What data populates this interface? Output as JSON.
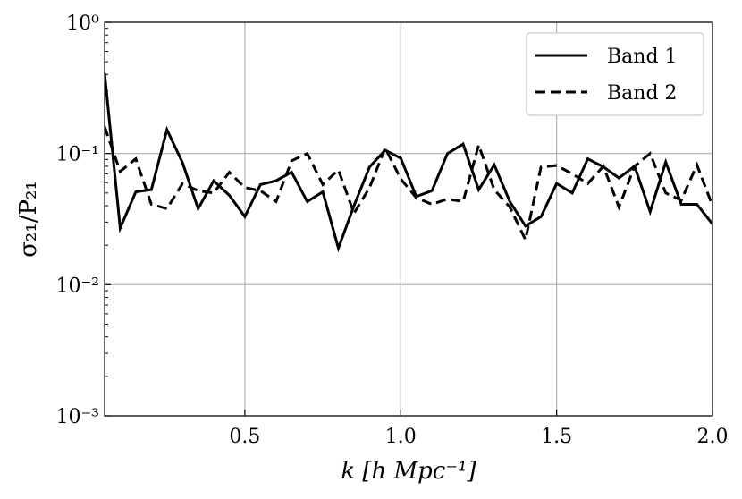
{
  "chart_data": {
    "type": "line",
    "x_label": "k [h Mpc⁻¹]",
    "y_label": "σ₂₁/P₂₁",
    "log_y": true,
    "grid": true,
    "legend": "upper right",
    "xlim": [
      0.05,
      2.0
    ],
    "ylim": [
      0.001,
      1
    ],
    "xticks": [
      0.5,
      {
        "value": 1,
        "label": "1.0"
      },
      1.5,
      {
        "value": 2,
        "label": "2.0"
      }
    ],
    "yticks": [
      {
        "value": 0.001,
        "label": "10⁻³"
      },
      {
        "value": 0.01,
        "label": "10⁻²"
      },
      {
        "value": 0.1,
        "label": "10⁻¹"
      },
      {
        "value": 1,
        "label": "10⁰"
      }
    ],
    "x": [
      0.05,
      0.1,
      0.15,
      0.2,
      0.25,
      0.3,
      0.35,
      0.4,
      0.45,
      0.5,
      0.55,
      0.6,
      0.65,
      0.7,
      0.75,
      0.8,
      0.85,
      0.9,
      0.95,
      1.0,
      1.05,
      1.1,
      1.15,
      1.2,
      1.25,
      1.3,
      1.35,
      1.4,
      1.45,
      1.5,
      1.55,
      1.6,
      1.65,
      1.7,
      1.75,
      1.8,
      1.85,
      1.9,
      1.95,
      2.0
    ],
    "series": [
      {
        "name": "Band 1",
        "color": "#000000",
        "dash": "solid",
        "values": [
          0.41,
          0.027,
          0.051,
          0.053,
          0.152,
          0.085,
          0.038,
          0.062,
          0.048,
          0.033,
          0.058,
          0.062,
          0.072,
          0.043,
          0.051,
          0.019,
          0.04,
          0.079,
          0.106,
          0.092,
          0.047,
          0.052,
          0.1,
          0.118,
          0.053,
          0.082,
          0.043,
          0.028,
          0.033,
          0.059,
          0.05,
          0.091,
          0.079,
          0.065,
          0.08,
          0.036,
          0.086,
          0.041,
          0.041,
          0.029
        ]
      },
      {
        "name": "Band 2",
        "color": "#000000",
        "dash": "dashed",
        "values": [
          0.16,
          0.073,
          0.091,
          0.041,
          0.038,
          0.059,
          0.052,
          0.05,
          0.072,
          0.055,
          0.052,
          0.043,
          0.088,
          0.1,
          0.058,
          0.075,
          0.035,
          0.055,
          0.11,
          0.064,
          0.046,
          0.041,
          0.045,
          0.043,
          0.116,
          0.053,
          0.039,
          0.022,
          0.079,
          0.081,
          0.07,
          0.059,
          0.08,
          0.039,
          0.08,
          0.1,
          0.05,
          0.044,
          0.082,
          0.04
        ]
      }
    ]
  }
}
